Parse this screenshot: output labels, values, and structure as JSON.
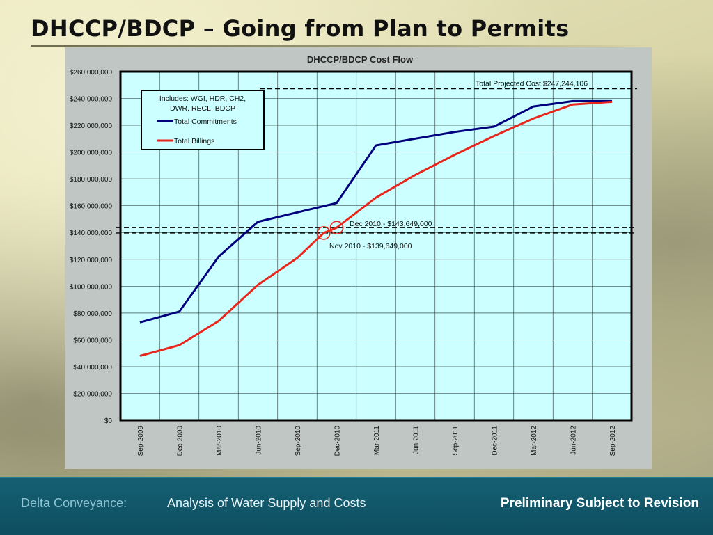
{
  "slide": {
    "title": "DHCCP/BDCP – Going from Plan to Permits"
  },
  "footer": {
    "left": "Delta Conveyance:",
    "middle": "Analysis of Water Supply and Costs",
    "right": "Preliminary Subject to Revision"
  },
  "colors": {
    "plot_background": "#ccffff",
    "commitments": "#00007f",
    "billings": "#e8261b",
    "footer_bar": "#155f72"
  },
  "chart_data": {
    "type": "line",
    "title": "DHCCP/BDCP Cost Flow",
    "xlabel": "",
    "ylabel": "",
    "categories": [
      "Sep-2009",
      "Dec-2009",
      "Mar-2010",
      "Jun-2010",
      "Sep-2010",
      "Dec-2010",
      "Mar-2011",
      "Jun-2011",
      "Sep-2011",
      "Dec-2011",
      "Mar-2012",
      "Jun-2012",
      "Sep-2012"
    ],
    "ylim": [
      0,
      260000000
    ],
    "yticks": [
      0,
      20000000,
      40000000,
      60000000,
      80000000,
      100000000,
      120000000,
      140000000,
      160000000,
      180000000,
      200000000,
      220000000,
      240000000,
      260000000
    ],
    "ytick_labels": [
      "$0",
      "$20,000,000",
      "$40,000,000",
      "$60,000,000",
      "$80,000,000",
      "$100,000,000",
      "$120,000,000",
      "$140,000,000",
      "$160,000,000",
      "$180,000,000",
      "$200,000,000",
      "$220,000,000",
      "$240,000,000",
      "$260,000,000"
    ],
    "grid": true,
    "legend": {
      "placement": "top-left",
      "note": "Includes: WGI, HDR, CH2, DWR, RECL, BDCP"
    },
    "series": [
      {
        "name": "Total Commitments",
        "color": "#00007f",
        "points": [
          [
            0,
            73000000
          ],
          [
            1,
            81000000
          ],
          [
            2,
            122000000
          ],
          [
            3,
            148000000
          ],
          [
            4,
            155000000
          ],
          [
            5,
            162000000
          ],
          [
            6,
            205000000
          ],
          [
            7,
            210000000
          ],
          [
            8,
            215000000
          ],
          [
            9,
            219000000
          ],
          [
            10,
            234000000
          ],
          [
            11,
            238000000
          ],
          [
            12,
            238000000
          ]
        ]
      },
      {
        "name": "Total Billings",
        "color": "#e8261b",
        "points": [
          [
            0,
            48000000
          ],
          [
            1,
            56000000
          ],
          [
            2,
            74000000
          ],
          [
            3,
            101000000
          ],
          [
            4,
            121000000
          ],
          [
            4.67,
            139649000
          ],
          [
            5,
            143649000
          ],
          [
            6,
            166000000
          ],
          [
            7,
            183000000
          ],
          [
            8,
            198000000
          ],
          [
            9,
            212000000
          ],
          [
            10,
            225000000
          ],
          [
            11,
            235500000
          ],
          [
            12,
            237500000
          ]
        ]
      }
    ],
    "reference_lines": [
      {
        "value": 247244106,
        "label": "Total Projected Cost $247,244,106"
      },
      {
        "value": 143649000,
        "label": "Dec 2010 - $143,649,000"
      },
      {
        "value": 139649000,
        "label": "Nov 2010 - $139,649,000"
      }
    ],
    "highlighted_points": [
      {
        "x": 4.67,
        "y": 139649000
      },
      {
        "x": 5,
        "y": 143649000
      }
    ]
  }
}
